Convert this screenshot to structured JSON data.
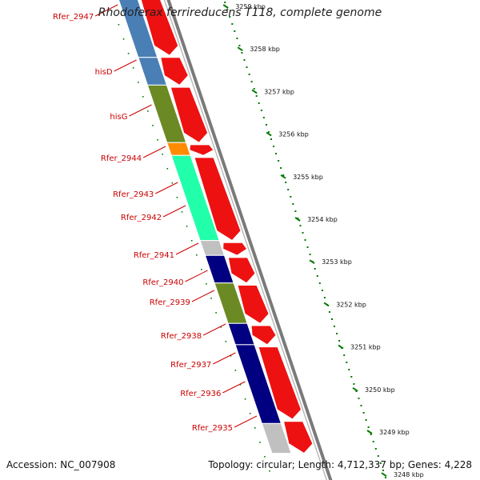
{
  "title": "Rhodoferax ferrireducens T118, complete genome",
  "accession": "Accession: NC_007908",
  "topology": "Topology: circular; Length: 4,712,337 bp; Genes: 4,228",
  "colors": {
    "label": "#cc0000",
    "tick": "#007a00",
    "cds_forward": "#ee1111",
    "backbone": "#7a7a7a"
  },
  "ticks": [
    {
      "kbp": 3259,
      "label": "3259 kbp"
    },
    {
      "kbp": 3258,
      "label": "3258 kbp"
    },
    {
      "kbp": 3257,
      "label": "3257 kbp"
    },
    {
      "kbp": 3256,
      "label": "3256 kbp"
    },
    {
      "kbp": 3255,
      "label": "3255 kbp"
    },
    {
      "kbp": 3254,
      "label": "3254 kbp"
    },
    {
      "kbp": 3253,
      "label": "3253 kbp"
    },
    {
      "kbp": 3252,
      "label": "3252 kbp"
    },
    {
      "kbp": 3251,
      "label": "3251 kbp"
    },
    {
      "kbp": 3250,
      "label": "3250 kbp"
    },
    {
      "kbp": 3249,
      "label": "3249 kbp"
    },
    {
      "kbp": 3248,
      "label": "3248 kbp"
    }
  ],
  "gene_labels": [
    "Rfer_2947",
    "hisD",
    "hisG",
    "Rfer_2944",
    "Rfer_2943",
    "Rfer_2942",
    "Rfer_2941",
    "Rfer_2940",
    "Rfer_2939",
    "Rfer_2938",
    "Rfer_2937",
    "Rfer_2936",
    "Rfer_2935"
  ],
  "cog_segments": [
    {
      "from": 3259.2,
      "to": 3257.8,
      "color": "#4a7fb5"
    },
    {
      "from": 3257.8,
      "to": 3257.15,
      "color": "#4a7fb5"
    },
    {
      "from": 3257.15,
      "to": 3255.8,
      "color": "#6b8a23"
    },
    {
      "from": 3255.8,
      "to": 3255.5,
      "color": "#ff8c00"
    },
    {
      "from": 3255.5,
      "to": 3253.5,
      "color": "#22ffaa"
    },
    {
      "from": 3253.5,
      "to": 3253.15,
      "color": "#c0c0c0"
    },
    {
      "from": 3253.15,
      "to": 3252.5,
      "color": "#000080"
    },
    {
      "from": 3252.5,
      "to": 3251.55,
      "color": "#6b8a23"
    },
    {
      "from": 3251.55,
      "to": 3251.05,
      "color": "#000080"
    },
    {
      "from": 3251.05,
      "to": 3249.2,
      "color": "#000080"
    },
    {
      "from": 3249.2,
      "to": 3248.5,
      "color": "#c0c0c0"
    }
  ],
  "cds_forward": [
    {
      "from": 3259.2,
      "to": 3257.85
    },
    {
      "from": 3257.8,
      "to": 3257.15
    },
    {
      "from": 3257.1,
      "to": 3255.8
    },
    {
      "from": 3255.75,
      "to": 3255.5
    },
    {
      "from": 3255.45,
      "to": 3253.5
    },
    {
      "from": 3253.45,
      "to": 3253.15
    },
    {
      "from": 3253.1,
      "to": 3252.5
    },
    {
      "from": 3252.45,
      "to": 3251.55
    },
    {
      "from": 3251.5,
      "to": 3251.05
    },
    {
      "from": 3251.0,
      "to": 3249.3
    },
    {
      "from": 3249.25,
      "to": 3248.5
    }
  ]
}
